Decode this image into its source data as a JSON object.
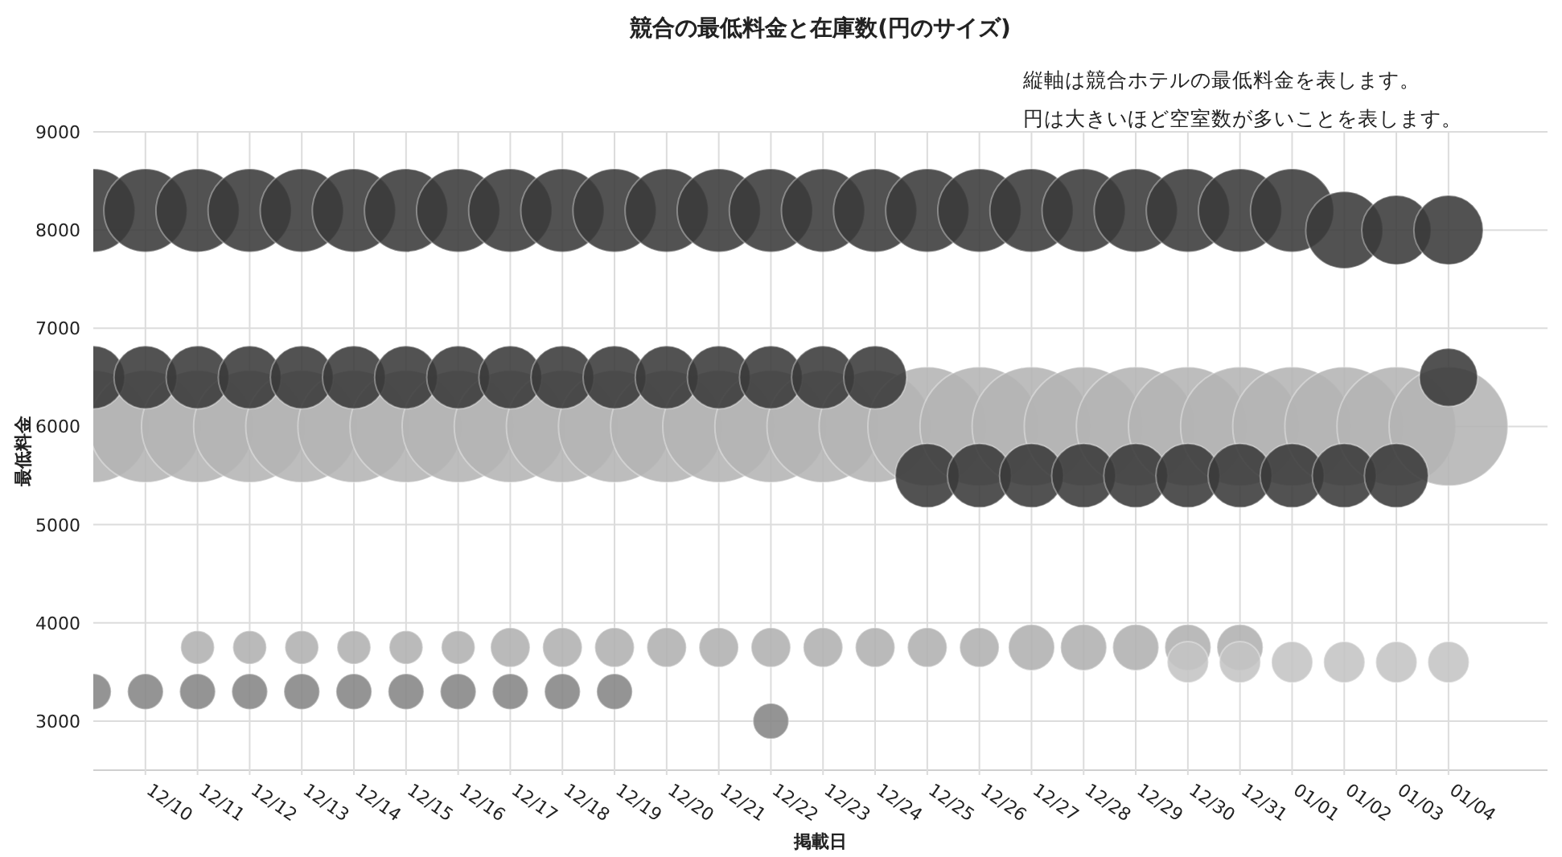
{
  "chart_data": {
    "type": "bubble",
    "title": "競合の最低料金と在庫数(円のサイズ)",
    "xlabel": "掲載日",
    "ylabel": "最低料金",
    "annotations": [
      "縦軸は競合ホテルの最低料金を表します。",
      "円は大きいほど空室数が多いことを表します。"
    ],
    "categories": [
      null,
      "12/10",
      "12/11",
      "12/12",
      "12/13",
      "12/14",
      "12/15",
      "12/16",
      "12/17",
      "12/18",
      "12/19",
      "12/20",
      "12/21",
      "12/22",
      "12/23",
      "12/24",
      "12/25",
      "12/26",
      "12/27",
      "12/28",
      "12/29",
      "12/30",
      "12/31",
      "01/01",
      "01/02",
      "01/03",
      "01/04"
    ],
    "ylim": [
      2500,
      9000
    ],
    "yticks": [
      3000,
      4000,
      5000,
      6000,
      7000,
      8000,
      9000
    ],
    "grid": true,
    "series": [
      {
        "color": "#b4b4b4",
        "values": [
          6000,
          6000,
          6000,
          6000,
          6000,
          6000,
          6000,
          6000,
          6000,
          6000,
          6000,
          6000,
          6000,
          6000,
          6000,
          6000,
          6000,
          6000,
          6000,
          6000,
          6000,
          6000,
          6000,
          6000,
          6000,
          6000,
          6000
        ],
        "sizes": [
          0.89,
          0.89,
          0.89,
          0.89,
          0.89,
          0.89,
          0.89,
          0.89,
          0.89,
          0.89,
          0.89,
          0.89,
          0.89,
          0.89,
          0.89,
          0.89,
          1,
          1,
          1,
          1,
          1,
          1,
          1,
          1,
          1,
          1,
          1
        ]
      },
      {
        "color": "#3a3a3a",
        "values": [
          8200,
          8200,
          8200,
          8200,
          8200,
          8200,
          8200,
          8200,
          8200,
          8200,
          8200,
          8200,
          8200,
          8200,
          8200,
          8200,
          8200,
          8200,
          8200,
          8200,
          8200,
          8200,
          8200,
          8200,
          8000,
          8000,
          8000
        ],
        "sizes": [
          0.49,
          0.49,
          0.49,
          0.49,
          0.49,
          0.49,
          0.49,
          0.49,
          0.49,
          0.49,
          0.49,
          0.49,
          0.49,
          0.49,
          0.49,
          0.49,
          0.49,
          0.49,
          0.49,
          0.49,
          0.49,
          0.49,
          0.49,
          0.49,
          0.42,
          0.34,
          0.34
        ]
      },
      {
        "color": "#3a3a3a",
        "values": [
          6500,
          6500,
          6500,
          6500,
          6500,
          6500,
          6500,
          6500,
          6500,
          6500,
          6500,
          6500,
          6500,
          6500,
          6500,
          6500,
          5500,
          5500,
          5500,
          5500,
          5500,
          5500,
          5500,
          5500,
          5500,
          5500,
          6500
        ],
        "sizes": [
          0.28,
          0.28,
          0.28,
          0.28,
          0.28,
          0.28,
          0.28,
          0.28,
          0.28,
          0.28,
          0.28,
          0.28,
          0.28,
          0.28,
          0.28,
          0.28,
          0.29,
          0.29,
          0.29,
          0.29,
          0.29,
          0.29,
          0.29,
          0.29,
          0.29,
          0.29,
          0.24
        ]
      },
      {
        "color": "#b0b0b0",
        "values": [
          null,
          null,
          3750,
          3750,
          3750,
          3750,
          3750,
          3750,
          3750,
          3750,
          3750,
          3750,
          3750,
          3750,
          3750,
          3750,
          3750,
          3750,
          3750,
          3750,
          3750,
          3750,
          3750,
          null,
          null,
          null,
          null
        ],
        "sizes": [
          null,
          null,
          0.08,
          0.08,
          0.08,
          0.08,
          0.08,
          0.08,
          0.11,
          0.11,
          0.11,
          0.11,
          0.11,
          0.11,
          0.11,
          0.11,
          0.11,
          0.11,
          0.15,
          0.15,
          0.15,
          0.15,
          0.15,
          null,
          null,
          null,
          null
        ]
      },
      {
        "color": "#c4c4c4",
        "values": [
          null,
          null,
          null,
          null,
          null,
          null,
          null,
          null,
          null,
          null,
          null,
          null,
          null,
          null,
          null,
          null,
          null,
          null,
          null,
          null,
          null,
          3600,
          3600,
          3600,
          3600,
          3600,
          3600
        ],
        "sizes": [
          null,
          null,
          null,
          null,
          null,
          null,
          null,
          null,
          null,
          null,
          null,
          null,
          null,
          null,
          null,
          null,
          null,
          null,
          null,
          null,
          null,
          0.12,
          0.12,
          0.12,
          0.12,
          0.12,
          0.12
        ]
      },
      {
        "color": "#858585",
        "values": [
          3300,
          3300,
          3300,
          3300,
          3300,
          3300,
          3300,
          3300,
          3300,
          3300,
          3300,
          null,
          null,
          3000,
          null,
          null,
          null,
          null,
          null,
          null,
          null,
          null,
          null,
          null,
          null,
          null,
          null
        ],
        "sizes": [
          0.09,
          0.09,
          0.09,
          0.09,
          0.09,
          0.09,
          0.09,
          0.09,
          0.09,
          0.09,
          0.09,
          null,
          null,
          0.09,
          null,
          null,
          null,
          null,
          null,
          null,
          null,
          null,
          null,
          null,
          null,
          null,
          null
        ]
      }
    ]
  }
}
